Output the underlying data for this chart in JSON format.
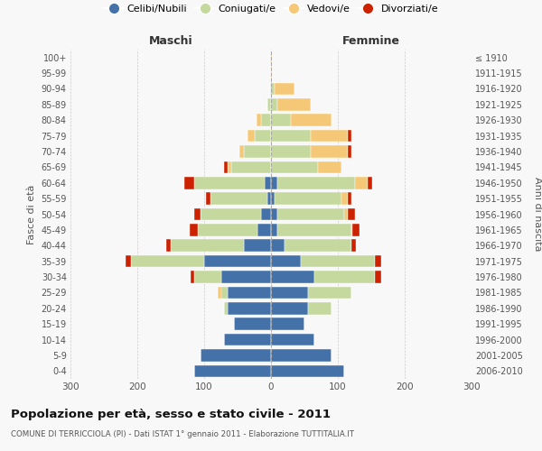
{
  "age_groups": [
    "0-4",
    "5-9",
    "10-14",
    "15-19",
    "20-24",
    "25-29",
    "30-34",
    "35-39",
    "40-44",
    "45-49",
    "50-54",
    "55-59",
    "60-64",
    "65-69",
    "70-74",
    "75-79",
    "80-84",
    "85-89",
    "90-94",
    "95-99",
    "100+"
  ],
  "birth_years": [
    "2006-2010",
    "2001-2005",
    "1996-2000",
    "1991-1995",
    "1986-1990",
    "1981-1985",
    "1976-1980",
    "1971-1975",
    "1966-1970",
    "1961-1965",
    "1956-1960",
    "1951-1955",
    "1946-1950",
    "1941-1945",
    "1936-1940",
    "1931-1935",
    "1926-1930",
    "1921-1925",
    "1916-1920",
    "1911-1915",
    "≤ 1910"
  ],
  "colors": {
    "celibi": "#4472a8",
    "coniugati": "#c5d89e",
    "vedovi": "#f5c878",
    "divorziati": "#cc2200"
  },
  "maschi": {
    "celibi": [
      115,
      105,
      70,
      55,
      65,
      65,
      75,
      100,
      40,
      20,
      15,
      5,
      10,
      0,
      0,
      0,
      0,
      0,
      0,
      0,
      0
    ],
    "coniugati": [
      0,
      0,
      0,
      0,
      5,
      10,
      40,
      110,
      110,
      90,
      90,
      85,
      105,
      60,
      40,
      25,
      15,
      5,
      2,
      0,
      0
    ],
    "vedovi": [
      0,
      0,
      0,
      0,
      0,
      5,
      0,
      0,
      0,
      0,
      0,
      0,
      0,
      5,
      7,
      10,
      7,
      0,
      0,
      0,
      1
    ],
    "divorziati": [
      0,
      0,
      0,
      0,
      0,
      0,
      5,
      7,
      7,
      12,
      10,
      7,
      15,
      5,
      0,
      0,
      0,
      0,
      0,
      0,
      0
    ]
  },
  "femmine": {
    "celibi": [
      110,
      90,
      65,
      50,
      55,
      55,
      65,
      45,
      20,
      10,
      10,
      5,
      10,
      0,
      0,
      0,
      0,
      0,
      0,
      0,
      0
    ],
    "coniugati": [
      0,
      0,
      0,
      0,
      35,
      65,
      90,
      110,
      100,
      110,
      100,
      100,
      115,
      70,
      60,
      60,
      30,
      10,
      5,
      0,
      0
    ],
    "vedovi": [
      0,
      0,
      0,
      0,
      0,
      0,
      0,
      0,
      0,
      2,
      5,
      10,
      20,
      35,
      55,
      55,
      60,
      50,
      30,
      2,
      2
    ],
    "divorziati": [
      0,
      0,
      0,
      0,
      0,
      0,
      10,
      10,
      7,
      10,
      10,
      5,
      7,
      0,
      5,
      5,
      0,
      0,
      0,
      0,
      0
    ]
  },
  "title": "Popolazione per età, sesso e stato civile - 2011",
  "subtitle": "COMUNE DI TERRICCIOLA (PI) - Dati ISTAT 1° gennaio 2011 - Elaborazione TUTTITALIA.IT",
  "xlabel_left": "Maschi",
  "xlabel_right": "Femmine",
  "ylabel_left": "Fasce di età",
  "ylabel_right": "Anni di nascita",
  "xlim": 300,
  "legend_labels": [
    "Celibi/Nubili",
    "Coniugati/e",
    "Vedovi/e",
    "Divorziati/e"
  ],
  "bg_color": "#f8f8f8",
  "grid_color": "#cccccc"
}
